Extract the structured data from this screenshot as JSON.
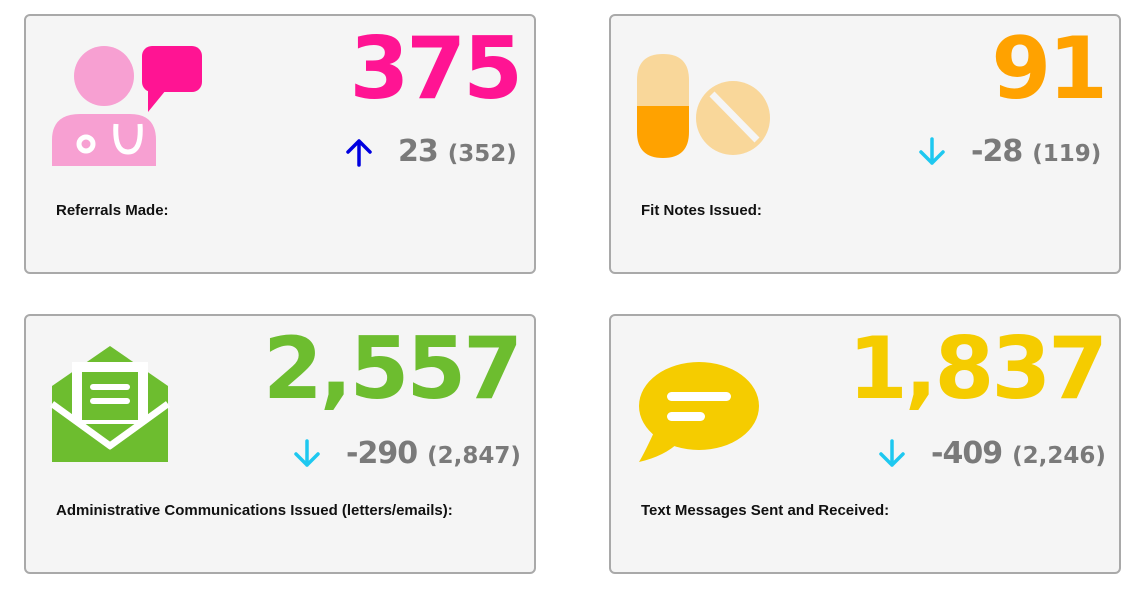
{
  "cards": [
    {
      "value": "375",
      "change": "23",
      "previous": "(352)",
      "label": "Referrals Made:",
      "trend": "up",
      "value_color": "#ff1493",
      "arrow_color": "#0000e0",
      "icon": "doctor-chat-icon"
    },
    {
      "value": "91",
      "change": "-28",
      "previous": "(119)",
      "label": "Fit Notes Issued:",
      "trend": "down",
      "value_color": "#ffa200",
      "arrow_color": "#1ec8f0",
      "icon": "pills-icon"
    },
    {
      "value": "2,557",
      "change": "-290",
      "previous": "(2,847)",
      "label": "Administrative Communications Issued (letters/emails):",
      "trend": "down",
      "value_color": "#6dbd2f",
      "arrow_color": "#1ec8f0",
      "icon": "open-envelope-icon"
    },
    {
      "value": "1,837",
      "change": "-409",
      "previous": "(2,246)",
      "label": "Text Messages Sent and Received:",
      "trend": "down",
      "value_color": "#f5cc00",
      "arrow_color": "#1ec8f0",
      "icon": "speech-bubble-icon"
    }
  ]
}
